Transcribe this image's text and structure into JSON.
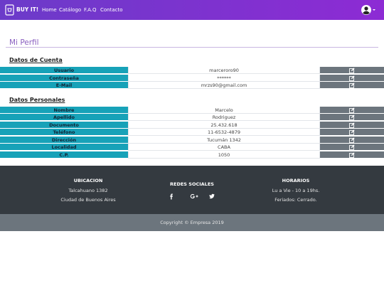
{
  "navbar": {
    "brand": "BUY IT!",
    "links": [
      "Home",
      "Catálogo",
      "F.A.Q",
      "Contacto"
    ]
  },
  "page_title": "Mi Perfil",
  "sections": [
    {
      "title": "Datos de Cuenta",
      "rows": [
        [
          "Usuario",
          "marceroro90"
        ],
        [
          "Contraseña",
          "******"
        ],
        [
          "E-Mail",
          "mrzs90@gmail.com"
        ]
      ]
    },
    {
      "title": "Datos Personales",
      "rows": [
        [
          "Nombre",
          "Marcelo"
        ],
        [
          "Apellido",
          "Rodriguez"
        ],
        [
          "Documento",
          "25.432.618"
        ],
        [
          "Teléfono",
          "11-6532-4879"
        ],
        [
          "Dirección",
          "Tucumán 1342"
        ],
        [
          "Localidad",
          "CABA"
        ],
        [
          "C.P.",
          "1050"
        ]
      ]
    }
  ],
  "footer": {
    "columns": [
      {
        "title": "UBICACION",
        "lines": [
          "Talcahuano 1382",
          "Ciudad de Buenos Aires"
        ]
      },
      {
        "title": "REDES SOCIALES"
      },
      {
        "title": "HORARIOS",
        "lines": [
          "Lu a Vie - 10 a 19hs.",
          "Feriados: Cerrado."
        ]
      }
    ],
    "copyright": "Copyright © Empresa 2019"
  }
}
